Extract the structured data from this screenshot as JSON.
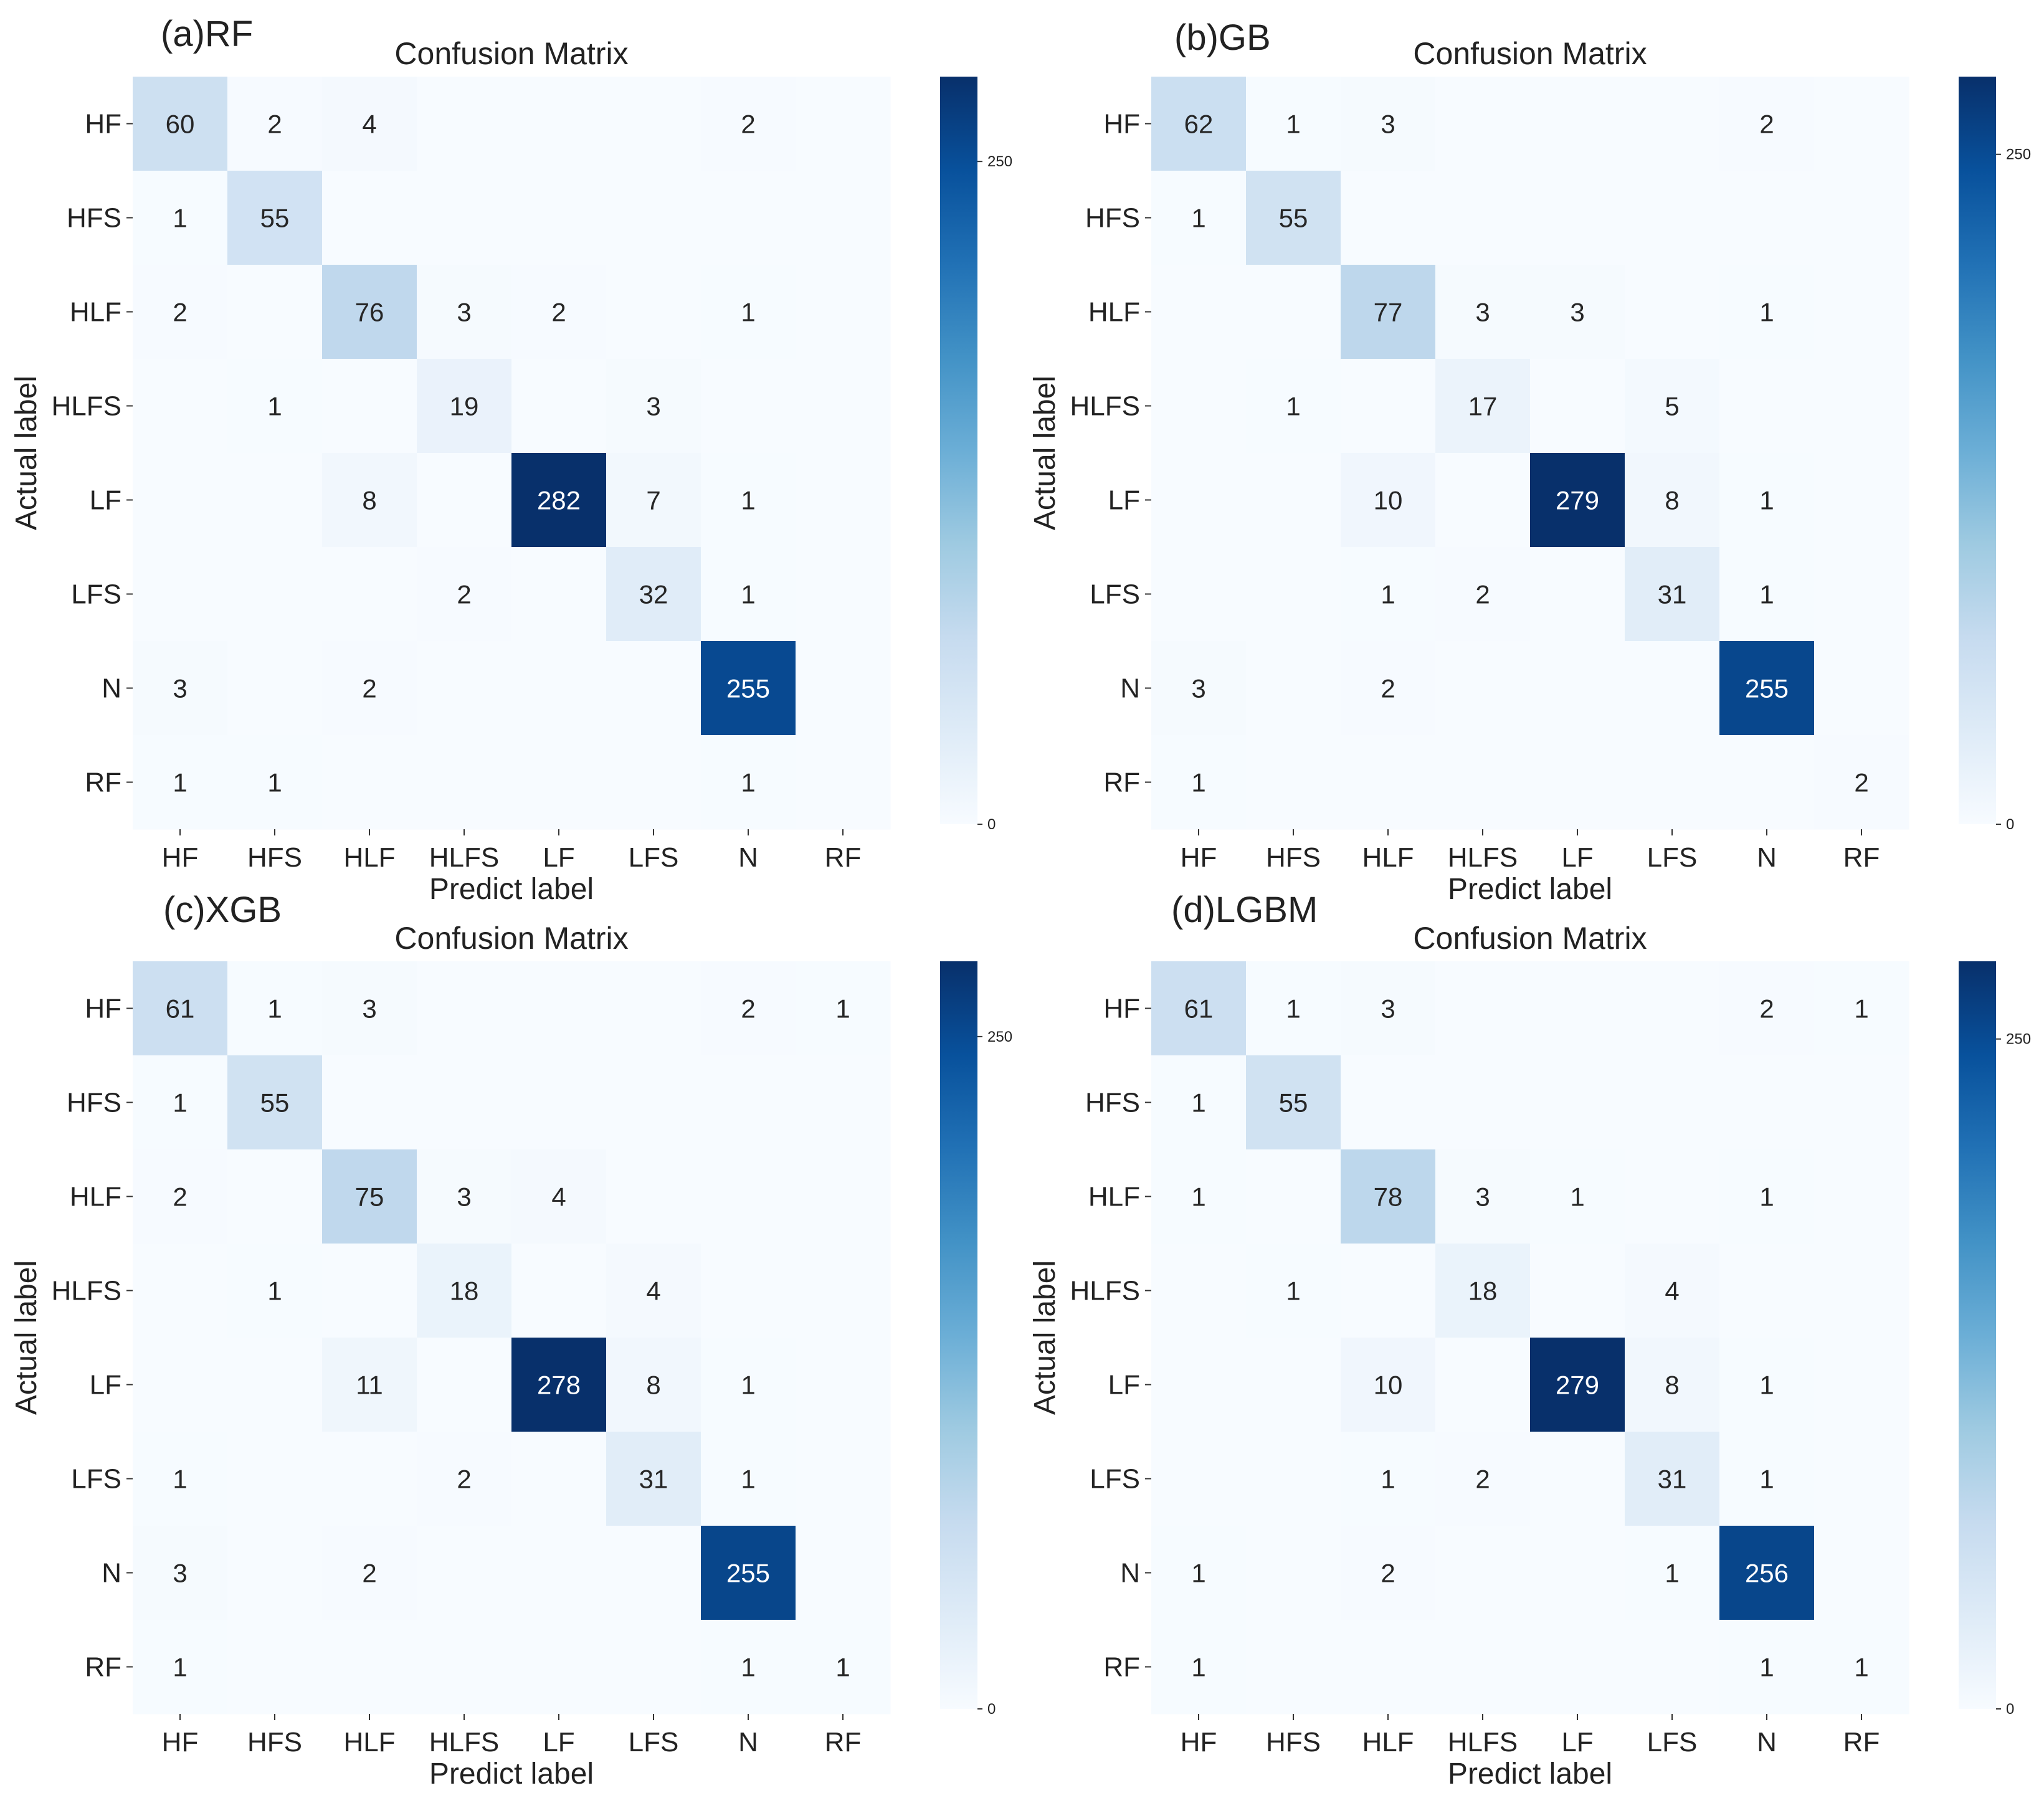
{
  "figure": {
    "colormap": [
      "#f7fbff",
      "#deebf7",
      "#c6dbef",
      "#9ecae1",
      "#6baed6",
      "#4292c6",
      "#2171b5",
      "#08519c",
      "#08306b"
    ],
    "axis_text_color": "#222222"
  },
  "chart_data": [
    {
      "type": "heatmap",
      "panel_label": "(a)RF",
      "title": "Confusion Matrix",
      "xlabel": "Predict label",
      "ylabel": "Actual label",
      "x_categories": [
        "HF",
        "HFS",
        "HLF",
        "HLFS",
        "LF",
        "LFS",
        "N",
        "RF"
      ],
      "y_categories": [
        "HF",
        "HFS",
        "HLF",
        "HLFS",
        "LF",
        "LFS",
        "N",
        "RF"
      ],
      "values": [
        [
          60,
          2,
          4,
          0,
          0,
          0,
          2,
          0
        ],
        [
          1,
          55,
          0,
          0,
          0,
          0,
          0,
          0
        ],
        [
          2,
          0,
          76,
          3,
          2,
          0,
          1,
          0
        ],
        [
          0,
          1,
          0,
          19,
          0,
          3,
          0,
          0
        ],
        [
          0,
          0,
          8,
          0,
          282,
          7,
          1,
          0
        ],
        [
          0,
          0,
          0,
          2,
          0,
          32,
          1,
          0
        ],
        [
          3,
          0,
          2,
          0,
          0,
          0,
          255,
          0
        ],
        [
          1,
          1,
          0,
          0,
          0,
          0,
          1,
          0
        ]
      ],
      "vmin": 0,
      "vmax": 282,
      "colorbar_ticks": [
        0,
        250
      ]
    },
    {
      "type": "heatmap",
      "panel_label": "(b)GB",
      "title": "Confusion Matrix",
      "xlabel": "Predict label",
      "ylabel": "Actual label",
      "x_categories": [
        "HF",
        "HFS",
        "HLF",
        "HLFS",
        "LF",
        "LFS",
        "N",
        "RF"
      ],
      "y_categories": [
        "HF",
        "HFS",
        "HLF",
        "HLFS",
        "LF",
        "LFS",
        "N",
        "RF"
      ],
      "values": [
        [
          62,
          1,
          3,
          0,
          0,
          0,
          2,
          0
        ],
        [
          1,
          55,
          0,
          0,
          0,
          0,
          0,
          0
        ],
        [
          0,
          0,
          77,
          3,
          3,
          0,
          1,
          0
        ],
        [
          0,
          1,
          0,
          17,
          0,
          5,
          0,
          0
        ],
        [
          0,
          0,
          10,
          0,
          279,
          8,
          1,
          0
        ],
        [
          0,
          0,
          1,
          2,
          0,
          31,
          1,
          0
        ],
        [
          3,
          0,
          2,
          0,
          0,
          0,
          255,
          0
        ],
        [
          1,
          0,
          0,
          0,
          0,
          0,
          0,
          2
        ]
      ],
      "vmin": 0,
      "vmax": 279,
      "colorbar_ticks": [
        0,
        250
      ]
    },
    {
      "type": "heatmap",
      "panel_label": "(c)XGB",
      "title": "Confusion Matrix",
      "xlabel": "Predict label",
      "ylabel": "Actual label",
      "x_categories": [
        "HF",
        "HFS",
        "HLF",
        "HLFS",
        "LF",
        "LFS",
        "N",
        "RF"
      ],
      "y_categories": [
        "HF",
        "HFS",
        "HLF",
        "HLFS",
        "LF",
        "LFS",
        "N",
        "RF"
      ],
      "values": [
        [
          61,
          1,
          3,
          0,
          0,
          0,
          2,
          1
        ],
        [
          1,
          55,
          0,
          0,
          0,
          0,
          0,
          0
        ],
        [
          2,
          0,
          75,
          3,
          4,
          0,
          0,
          0
        ],
        [
          0,
          1,
          0,
          18,
          0,
          4,
          0,
          0
        ],
        [
          0,
          0,
          11,
          0,
          278,
          8,
          1,
          0
        ],
        [
          1,
          0,
          0,
          2,
          0,
          31,
          1,
          0
        ],
        [
          3,
          0,
          2,
          0,
          0,
          0,
          255,
          0
        ],
        [
          1,
          0,
          0,
          0,
          0,
          0,
          1,
          1
        ]
      ],
      "vmin": 0,
      "vmax": 278,
      "colorbar_ticks": [
        0,
        250
      ]
    },
    {
      "type": "heatmap",
      "panel_label": "(d)LGBM",
      "title": "Confusion Matrix",
      "xlabel": "Predict label",
      "ylabel": "Actual label",
      "x_categories": [
        "HF",
        "HFS",
        "HLF",
        "HLFS",
        "LF",
        "LFS",
        "N",
        "RF"
      ],
      "y_categories": [
        "HF",
        "HFS",
        "HLF",
        "HLFS",
        "LF",
        "LFS",
        "N",
        "RF"
      ],
      "values": [
        [
          61,
          1,
          3,
          0,
          0,
          0,
          2,
          1
        ],
        [
          1,
          55,
          0,
          0,
          0,
          0,
          0,
          0
        ],
        [
          1,
          0,
          78,
          3,
          1,
          0,
          1,
          0
        ],
        [
          0,
          1,
          0,
          18,
          0,
          4,
          0,
          0
        ],
        [
          0,
          0,
          10,
          0,
          279,
          8,
          1,
          0
        ],
        [
          0,
          0,
          1,
          2,
          0,
          31,
          1,
          0
        ],
        [
          1,
          0,
          2,
          0,
          0,
          1,
          256,
          0
        ],
        [
          1,
          0,
          0,
          0,
          0,
          0,
          1,
          1
        ]
      ],
      "vmin": 0,
      "vmax": 279,
      "colorbar_ticks": [
        0,
        250
      ]
    }
  ]
}
